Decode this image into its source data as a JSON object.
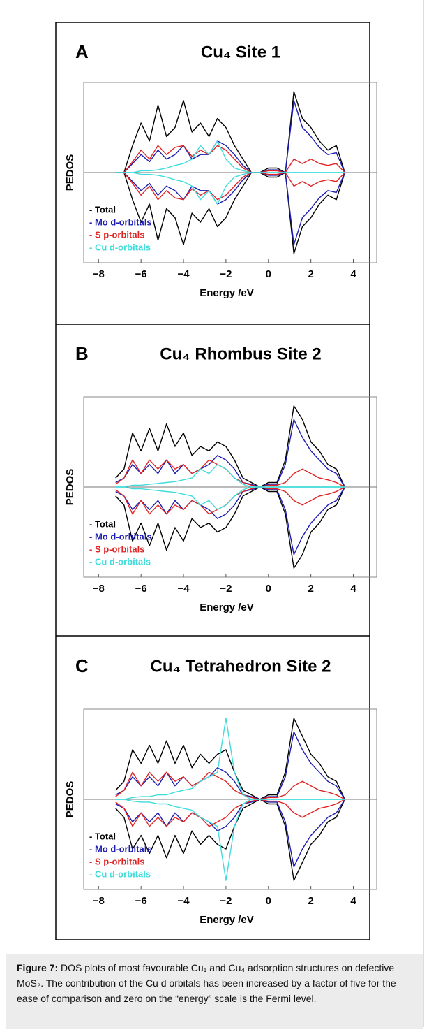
{
  "chart_data": [
    {
      "type": "line",
      "panel_label": "A",
      "title": "Cu₄ Site 1",
      "xlabel": "Energy /eV",
      "ylabel": "PEDOS",
      "x": [
        -7.2,
        -6.8,
        -6.4,
        -6.0,
        -5.6,
        -5.2,
        -4.8,
        -4.4,
        -4.0,
        -3.6,
        -3.2,
        -2.8,
        -2.4,
        -2.0,
        -1.6,
        -1.2,
        -0.8,
        -0.4,
        0,
        0.4,
        0.8,
        1.2,
        1.6,
        2.0,
        2.4,
        2.8,
        3.2,
        3.6
      ],
      "xlim": [
        -8.7,
        5.1
      ],
      "ylim": [
        -1,
        1
      ],
      "xticks": [
        {
          "value": -8,
          "label": "−8"
        },
        {
          "value": -6,
          "label": "−6"
        },
        {
          "value": -4,
          "label": "−4"
        },
        {
          "value": -2,
          "label": "−2"
        },
        0,
        2,
        4
      ],
      "series": [
        {
          "name": "- Total",
          "color": "#000000",
          "values": [
            0,
            0,
            0.3,
            0.55,
            0.35,
            0.75,
            0.4,
            0.5,
            0.8,
            0.45,
            0.55,
            0.4,
            0.6,
            0.5,
            0.3,
            0.15,
            0,
            0,
            0.05,
            0.05,
            0,
            0.9,
            0.6,
            0.5,
            0.35,
            0.25,
            0.3,
            0
          ]
        },
        {
          "name": "- Mo d-orbitals",
          "color": "#1c1cb0",
          "values": [
            0,
            0,
            0.1,
            0.2,
            0.12,
            0.25,
            0.15,
            0.2,
            0.3,
            0.15,
            0.2,
            0.2,
            0.35,
            0.3,
            0.2,
            0.08,
            0,
            0,
            0.03,
            0.03,
            0,
            0.8,
            0.5,
            0.4,
            0.28,
            0.2,
            0.22,
            0
          ]
        },
        {
          "name": "- S p-orbitals",
          "color": "#e02424",
          "values": [
            0,
            0,
            0.12,
            0.25,
            0.15,
            0.3,
            0.2,
            0.28,
            0.3,
            0.18,
            0.25,
            0.2,
            0.3,
            0.25,
            0.15,
            0.05,
            0,
            0,
            0.02,
            0.02,
            0,
            0.15,
            0.1,
            0.15,
            0.1,
            0.08,
            0.1,
            0
          ]
        },
        {
          "name": "- Cu d-orbitals",
          "color": "#3fdcdc",
          "values": [
            0,
            0,
            0,
            0.02,
            0.02,
            0.03,
            0.05,
            0.08,
            0.1,
            0.15,
            0.3,
            0.2,
            0.35,
            0.15,
            0.05,
            0.02,
            0,
            0,
            0,
            0,
            0,
            0,
            0,
            0,
            0,
            0,
            0,
            0
          ]
        }
      ]
    },
    {
      "type": "line",
      "panel_label": "B",
      "title": "Cu₄ Rhombus Site 2",
      "xlabel": "Energy /eV",
      "ylabel": "PEDOS",
      "x": [
        -7.2,
        -6.8,
        -6.4,
        -6.0,
        -5.6,
        -5.2,
        -4.8,
        -4.4,
        -4.0,
        -3.6,
        -3.2,
        -2.8,
        -2.4,
        -2.0,
        -1.6,
        -1.2,
        -0.8,
        -0.4,
        0,
        0.4,
        0.8,
        1.2,
        1.6,
        2.0,
        2.4,
        2.8,
        3.2,
        3.6
      ],
      "xlim": [
        -8.7,
        5.1
      ],
      "ylim": [
        -1,
        1
      ],
      "xticks": [
        {
          "value": -8,
          "label": "−8"
        },
        {
          "value": -6,
          "label": "−6"
        },
        {
          "value": -4,
          "label": "−4"
        },
        {
          "value": -2,
          "label": "−2"
        },
        0,
        2,
        4
      ],
      "series": [
        {
          "name": "- Total",
          "color": "#000000",
          "values": [
            0.1,
            0.2,
            0.6,
            0.4,
            0.65,
            0.4,
            0.7,
            0.45,
            0.6,
            0.35,
            0.45,
            0.4,
            0.5,
            0.45,
            0.3,
            0.1,
            0.05,
            0,
            0.05,
            0.05,
            0.3,
            0.9,
            0.75,
            0.5,
            0.4,
            0.25,
            0.2,
            0
          ]
        },
        {
          "name": "- Mo d-orbitals",
          "color": "#1c1cb0",
          "values": [
            0.05,
            0.1,
            0.25,
            0.15,
            0.25,
            0.15,
            0.3,
            0.15,
            0.25,
            0.15,
            0.2,
            0.25,
            0.35,
            0.3,
            0.2,
            0.05,
            0.03,
            0,
            0.03,
            0.03,
            0.25,
            0.75,
            0.55,
            0.4,
            0.3,
            0.2,
            0.15,
            0
          ]
        },
        {
          "name": "- S p-orbitals",
          "color": "#e02424",
          "values": [
            0.03,
            0.1,
            0.3,
            0.15,
            0.3,
            0.2,
            0.3,
            0.2,
            0.25,
            0.15,
            0.2,
            0.3,
            0.25,
            0.2,
            0.1,
            0.05,
            0.02,
            0,
            0.02,
            0.02,
            0.05,
            0.15,
            0.2,
            0.15,
            0.1,
            0.08,
            0.05,
            0
          ]
        },
        {
          "name": "- Cu d-orbitals",
          "color": "#3fdcdc",
          "values": [
            0,
            0,
            0.02,
            0.02,
            0.03,
            0.04,
            0.05,
            0.06,
            0.08,
            0.1,
            0.2,
            0.15,
            0.25,
            0.2,
            0.1,
            0.03,
            0,
            0,
            0,
            0,
            0,
            0,
            0,
            0,
            0,
            0,
            0,
            0
          ]
        }
      ]
    },
    {
      "type": "line",
      "panel_label": "C",
      "title": "Cu₄ Tetrahedron Site 2",
      "xlabel": "Energy /eV",
      "ylabel": "PEDOS",
      "x": [
        -7.2,
        -6.8,
        -6.4,
        -6.0,
        -5.6,
        -5.2,
        -4.8,
        -4.4,
        -4.0,
        -3.6,
        -3.2,
        -2.8,
        -2.4,
        -2.0,
        -1.6,
        -1.2,
        -0.8,
        -0.4,
        0,
        0.4,
        0.8,
        1.2,
        1.6,
        2.0,
        2.4,
        2.8,
        3.2,
        3.6
      ],
      "xlim": [
        -8.7,
        5.1
      ],
      "ylim": [
        -1,
        1
      ],
      "xticks": [
        {
          "value": -8,
          "label": "−8"
        },
        {
          "value": -6,
          "label": "−6"
        },
        {
          "value": -4,
          "label": "−4"
        },
        {
          "value": -2,
          "label": "−2"
        },
        0,
        2,
        4
      ],
      "series": [
        {
          "name": "- Total",
          "color": "#000000",
          "values": [
            0.1,
            0.2,
            0.55,
            0.4,
            0.6,
            0.4,
            0.65,
            0.4,
            0.6,
            0.35,
            0.5,
            0.4,
            0.5,
            0.55,
            0.3,
            0.1,
            0.05,
            0,
            0.05,
            0.05,
            0.3,
            0.9,
            0.7,
            0.5,
            0.4,
            0.25,
            0.2,
            0
          ]
        },
        {
          "name": "- Mo d-orbitals",
          "color": "#1c1cb0",
          "values": [
            0.05,
            0.1,
            0.25,
            0.15,
            0.25,
            0.15,
            0.3,
            0.15,
            0.25,
            0.15,
            0.2,
            0.25,
            0.35,
            0.3,
            0.2,
            0.05,
            0.03,
            0,
            0.03,
            0.03,
            0.25,
            0.75,
            0.55,
            0.4,
            0.3,
            0.2,
            0.15,
            0
          ]
        },
        {
          "name": "- S p-orbitals",
          "color": "#e02424",
          "values": [
            0.03,
            0.1,
            0.3,
            0.15,
            0.3,
            0.2,
            0.3,
            0.2,
            0.25,
            0.15,
            0.2,
            0.3,
            0.25,
            0.2,
            0.1,
            0.05,
            0.02,
            0,
            0.02,
            0.02,
            0.05,
            0.15,
            0.2,
            0.15,
            0.1,
            0.08,
            0.05,
            0
          ]
        },
        {
          "name": "- Cu d-orbitals",
          "color": "#3fdcdc",
          "values": [
            0,
            0,
            0.02,
            0.03,
            0.03,
            0.05,
            0.05,
            0.08,
            0.1,
            0.12,
            0.2,
            0.25,
            0.3,
            0.9,
            0.3,
            0.05,
            0,
            0,
            0,
            0,
            0,
            0,
            0,
            0,
            0,
            0,
            0,
            0
          ]
        }
      ]
    }
  ],
  "caption": {
    "label": "Figure 7:",
    "text": "DOS plots of most favourable Cu₁ and Cu₄ adsorption structures on defective MoS₂. The contribution of the Cu d orbitals has been increased by a factor of five for the ease of comparison and zero on the “energy” scale is the Fermi level."
  }
}
